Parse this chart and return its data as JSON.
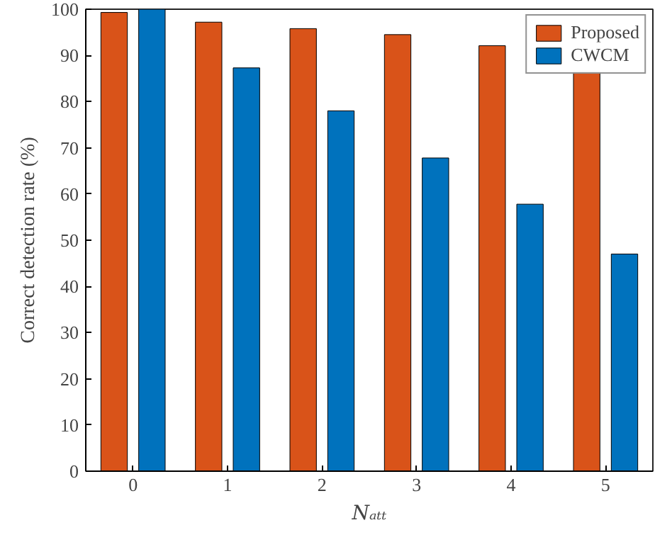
{
  "chart_data": {
    "type": "bar",
    "xlabel": "Nₐₜₜ",
    "ylabel": "Correct detection rate (%)",
    "categories": [
      "0",
      "1",
      "2",
      "3",
      "4",
      "5"
    ],
    "series": [
      {
        "name": "Proposed",
        "color": "#d95319",
        "values": [
          99.3,
          97.2,
          95.8,
          94.5,
          92.1,
          86.5
        ]
      },
      {
        "name": "CWCM",
        "color": "#0072bd",
        "values": [
          100,
          87.3,
          78,
          67.8,
          57.8,
          47
        ]
      }
    ],
    "ylim": [
      0,
      100
    ],
    "yticks": [
      0,
      10,
      20,
      30,
      40,
      50,
      60,
      70,
      80,
      90,
      100
    ],
    "grid": false,
    "legend": "top right"
  }
}
